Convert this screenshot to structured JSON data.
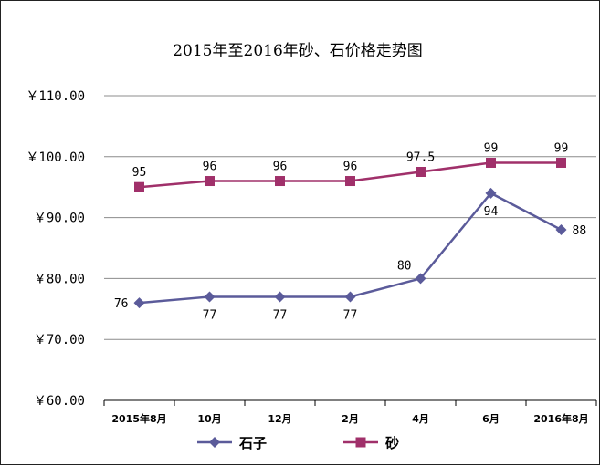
{
  "chart_data": {
    "type": "line",
    "title": "2015年至2016年砂、石价格走势图",
    "categories": [
      "2015年8月",
      "10月",
      "12月",
      "2月",
      "4月",
      "6月",
      "2016年8月"
    ],
    "ylim": [
      60,
      110
    ],
    "yticks": [
      60,
      70,
      80,
      90,
      100,
      110
    ],
    "ytick_labels": [
      "￥60.00",
      "￥70.00",
      "￥80.00",
      "￥90.00",
      "￥100.00",
      "￥110.00"
    ],
    "grid": "horizontal",
    "legend_position": "bottom",
    "series": [
      {
        "name": "石子",
        "marker": "diamond",
        "color": "#5b5b9a",
        "values": [
          76,
          77,
          77,
          77,
          80,
          94,
          88
        ],
        "labels": [
          "76",
          "77",
          "77",
          "77",
          "80",
          "94",
          "88"
        ],
        "label_positions": [
          "left",
          "below",
          "below",
          "below",
          "above-left",
          "below",
          "right"
        ]
      },
      {
        "name": "砂",
        "marker": "square",
        "color": "#a0306a",
        "values": [
          95,
          96,
          96,
          96,
          97.5,
          99,
          99
        ],
        "labels": [
          "95",
          "96",
          "96",
          "96",
          "97.5",
          "99",
          "99"
        ],
        "label_positions": [
          "above",
          "above",
          "above",
          "above",
          "above",
          "above",
          "above"
        ]
      }
    ]
  }
}
